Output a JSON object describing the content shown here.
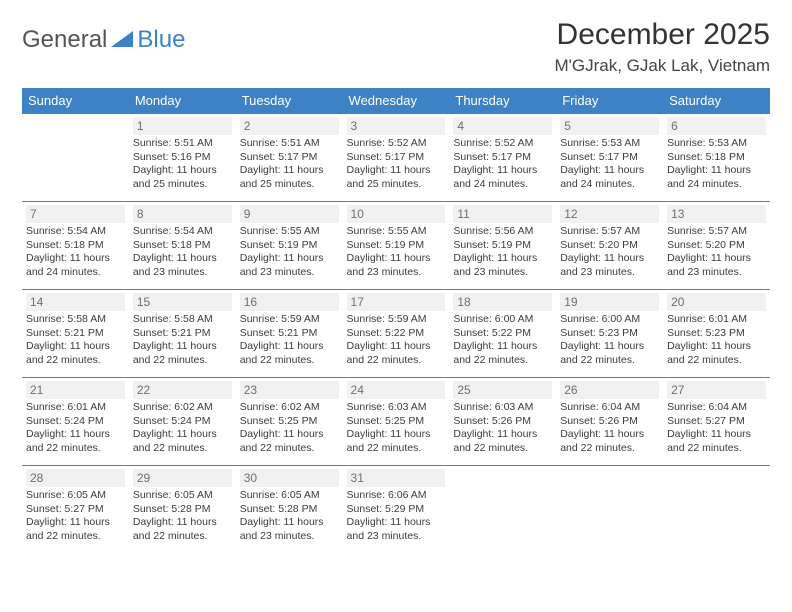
{
  "logo": {
    "general": "General",
    "blue": "Blue"
  },
  "title": "December 2025",
  "location": "M'GJrak, GJak Lak, Vietnam",
  "header_row_bg": "#3d82c4",
  "header_row_fg": "#ffffff",
  "daynum_bg": "#f1f1f1",
  "daynum_fg": "#6f6f6f",
  "border_color": "#3d82c4",
  "days_of_week": [
    "Sunday",
    "Monday",
    "Tuesday",
    "Wednesday",
    "Thursday",
    "Friday",
    "Saturday"
  ],
  "weeks": [
    [
      null,
      {
        "n": "1",
        "sunrise": "5:51 AM",
        "sunset": "5:16 PM",
        "daylight": "11 hours and 25 minutes."
      },
      {
        "n": "2",
        "sunrise": "5:51 AM",
        "sunset": "5:17 PM",
        "daylight": "11 hours and 25 minutes."
      },
      {
        "n": "3",
        "sunrise": "5:52 AM",
        "sunset": "5:17 PM",
        "daylight": "11 hours and 25 minutes."
      },
      {
        "n": "4",
        "sunrise": "5:52 AM",
        "sunset": "5:17 PM",
        "daylight": "11 hours and 24 minutes."
      },
      {
        "n": "5",
        "sunrise": "5:53 AM",
        "sunset": "5:17 PM",
        "daylight": "11 hours and 24 minutes."
      },
      {
        "n": "6",
        "sunrise": "5:53 AM",
        "sunset": "5:18 PM",
        "daylight": "11 hours and 24 minutes."
      }
    ],
    [
      {
        "n": "7",
        "sunrise": "5:54 AM",
        "sunset": "5:18 PM",
        "daylight": "11 hours and 24 minutes."
      },
      {
        "n": "8",
        "sunrise": "5:54 AM",
        "sunset": "5:18 PM",
        "daylight": "11 hours and 23 minutes."
      },
      {
        "n": "9",
        "sunrise": "5:55 AM",
        "sunset": "5:19 PM",
        "daylight": "11 hours and 23 minutes."
      },
      {
        "n": "10",
        "sunrise": "5:55 AM",
        "sunset": "5:19 PM",
        "daylight": "11 hours and 23 minutes."
      },
      {
        "n": "11",
        "sunrise": "5:56 AM",
        "sunset": "5:19 PM",
        "daylight": "11 hours and 23 minutes."
      },
      {
        "n": "12",
        "sunrise": "5:57 AM",
        "sunset": "5:20 PM",
        "daylight": "11 hours and 23 minutes."
      },
      {
        "n": "13",
        "sunrise": "5:57 AM",
        "sunset": "5:20 PM",
        "daylight": "11 hours and 23 minutes."
      }
    ],
    [
      {
        "n": "14",
        "sunrise": "5:58 AM",
        "sunset": "5:21 PM",
        "daylight": "11 hours and 22 minutes."
      },
      {
        "n": "15",
        "sunrise": "5:58 AM",
        "sunset": "5:21 PM",
        "daylight": "11 hours and 22 minutes."
      },
      {
        "n": "16",
        "sunrise": "5:59 AM",
        "sunset": "5:21 PM",
        "daylight": "11 hours and 22 minutes."
      },
      {
        "n": "17",
        "sunrise": "5:59 AM",
        "sunset": "5:22 PM",
        "daylight": "11 hours and 22 minutes."
      },
      {
        "n": "18",
        "sunrise": "6:00 AM",
        "sunset": "5:22 PM",
        "daylight": "11 hours and 22 minutes."
      },
      {
        "n": "19",
        "sunrise": "6:00 AM",
        "sunset": "5:23 PM",
        "daylight": "11 hours and 22 minutes."
      },
      {
        "n": "20",
        "sunrise": "6:01 AM",
        "sunset": "5:23 PM",
        "daylight": "11 hours and 22 minutes."
      }
    ],
    [
      {
        "n": "21",
        "sunrise": "6:01 AM",
        "sunset": "5:24 PM",
        "daylight": "11 hours and 22 minutes."
      },
      {
        "n": "22",
        "sunrise": "6:02 AM",
        "sunset": "5:24 PM",
        "daylight": "11 hours and 22 minutes."
      },
      {
        "n": "23",
        "sunrise": "6:02 AM",
        "sunset": "5:25 PM",
        "daylight": "11 hours and 22 minutes."
      },
      {
        "n": "24",
        "sunrise": "6:03 AM",
        "sunset": "5:25 PM",
        "daylight": "11 hours and 22 minutes."
      },
      {
        "n": "25",
        "sunrise": "6:03 AM",
        "sunset": "5:26 PM",
        "daylight": "11 hours and 22 minutes."
      },
      {
        "n": "26",
        "sunrise": "6:04 AM",
        "sunset": "5:26 PM",
        "daylight": "11 hours and 22 minutes."
      },
      {
        "n": "27",
        "sunrise": "6:04 AM",
        "sunset": "5:27 PM",
        "daylight": "11 hours and 22 minutes."
      }
    ],
    [
      {
        "n": "28",
        "sunrise": "6:05 AM",
        "sunset": "5:27 PM",
        "daylight": "11 hours and 22 minutes."
      },
      {
        "n": "29",
        "sunrise": "6:05 AM",
        "sunset": "5:28 PM",
        "daylight": "11 hours and 22 minutes."
      },
      {
        "n": "30",
        "sunrise": "6:05 AM",
        "sunset": "5:28 PM",
        "daylight": "11 hours and 23 minutes."
      },
      {
        "n": "31",
        "sunrise": "6:06 AM",
        "sunset": "5:29 PM",
        "daylight": "11 hours and 23 minutes."
      },
      null,
      null,
      null
    ]
  ]
}
